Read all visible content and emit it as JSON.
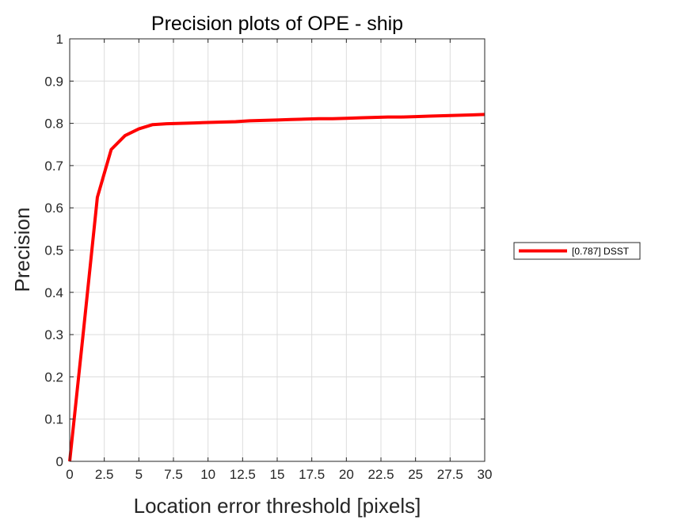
{
  "chart_data": {
    "type": "line",
    "title": "Precision plots of OPE - ship",
    "xlabel": "Location error threshold [pixels]",
    "ylabel": "Precision",
    "xlim": [
      0,
      30
    ],
    "ylim": [
      0,
      1
    ],
    "xticks": [
      0,
      2.5,
      5,
      7.5,
      10,
      12.5,
      15,
      17.5,
      20,
      22.5,
      25,
      27.5,
      30
    ],
    "xtick_labels": [
      "0",
      "2.5",
      "5",
      "7.5",
      "10",
      "12.5",
      "15",
      "17.5",
      "20",
      "22.5",
      "25",
      "27.5",
      "30"
    ],
    "yticks": [
      0,
      0.1,
      0.2,
      0.3,
      0.4,
      0.5,
      0.6,
      0.7,
      0.8,
      0.9,
      1
    ],
    "ytick_labels": [
      "0",
      "0.1",
      "0.2",
      "0.3",
      "0.4",
      "0.5",
      "0.6",
      "0.7",
      "0.8",
      "0.9",
      "1"
    ],
    "grid": true,
    "legend_position": "outside-right",
    "series": [
      {
        "name": "[0.787] DSST",
        "color": "#ff0000",
        "x": [
          0,
          1,
          2,
          3,
          4,
          5,
          6,
          7,
          8,
          9,
          10,
          11,
          12,
          13,
          14,
          15,
          16,
          17,
          18,
          19,
          20,
          21,
          22,
          23,
          24,
          25,
          26,
          27,
          28,
          29,
          30
        ],
        "y": [
          0.0,
          0.31,
          0.625,
          0.738,
          0.771,
          0.787,
          0.797,
          0.799,
          0.8,
          0.801,
          0.802,
          0.803,
          0.804,
          0.806,
          0.807,
          0.808,
          0.809,
          0.81,
          0.811,
          0.811,
          0.812,
          0.813,
          0.814,
          0.815,
          0.815,
          0.816,
          0.817,
          0.818,
          0.819,
          0.82,
          0.821
        ]
      }
    ]
  }
}
